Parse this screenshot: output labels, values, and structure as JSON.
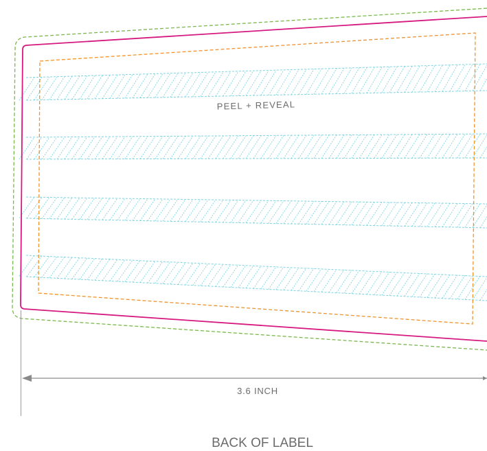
{
  "labels": {
    "peel": "PEEL + REVEAL",
    "dimension": "3.6 INCH",
    "caption": "BACK OF LABEL"
  },
  "colors": {
    "cut_line": "#d6187f",
    "bleed_line": "#78b84a",
    "safe_line": "#f0922a",
    "hatch": "#7ed4e0",
    "dimension": "#8a8a8a",
    "text": "#6b6b6b"
  },
  "hatch_band_count": 4
}
